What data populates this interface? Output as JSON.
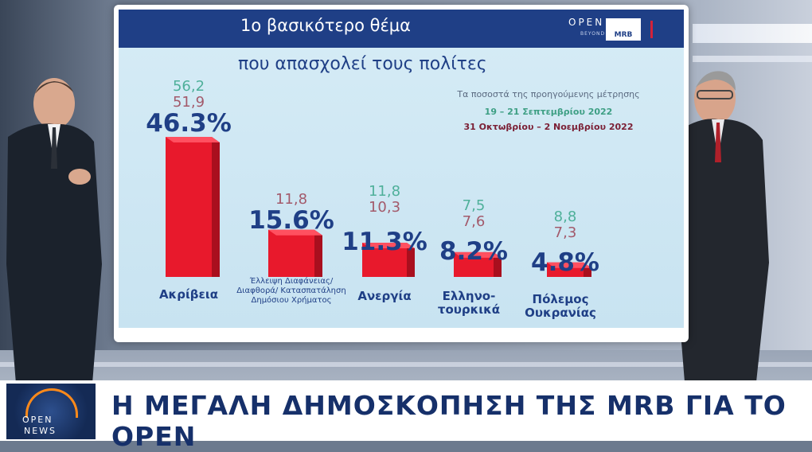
{
  "header": {
    "title_line1": "1ο βασικότερο θέμα",
    "title_line2": "που απασχολεί τους πολίτες",
    "logo_open": "OPEN",
    "logo_open_sub": "BEYOND",
    "logo_mrb": "MRB"
  },
  "previous_note": {
    "label": "Τα ποσοστά της προηγούμενης μέτρησης",
    "date_green": "19 – 21 Σεπτεμβρίου 2022",
    "date_maroon": "31 Οκτωβρίου – 2 Νοεμβρίου 2022"
  },
  "chart_data": {
    "type": "bar",
    "categories": [
      "Ακρίβεια",
      "Έλλειψη Διαφάνειας/ Διαφθορά/ Κατασπατάληση Δημόσιου Χρήματος",
      "Ανεργία",
      "Ελληνο- τουρκικά",
      "Πόλεμος Ουκρανίας"
    ],
    "values": [
      46.3,
      15.6,
      11.3,
      8.2,
      4.8
    ],
    "value_labels": [
      "46.3%",
      "15.6%",
      "11.3%",
      "8.2%",
      "4.8%"
    ],
    "previous_green": [
      "56,2",
      "",
      "11,8",
      "7,5",
      "8,8"
    ],
    "previous_maroon": [
      "51,9",
      "11,8",
      "10,3",
      "7,6",
      "7,3"
    ],
    "ylim": [
      0,
      50
    ],
    "colors": {
      "bar": "#e8192c",
      "green": "#4fb09a",
      "maroon": "#a35a6b",
      "value": "#1f3f86"
    }
  },
  "ticker": {
    "logo_open": "OPEN",
    "logo_news": "NEWS",
    "headline": "Η ΜΕΓΑΛΗ ΔΗΜΟΣΚΟΠΗΣΗ ΤΗΣ MRB ΓΙΑ ΤΟ OPEN"
  }
}
